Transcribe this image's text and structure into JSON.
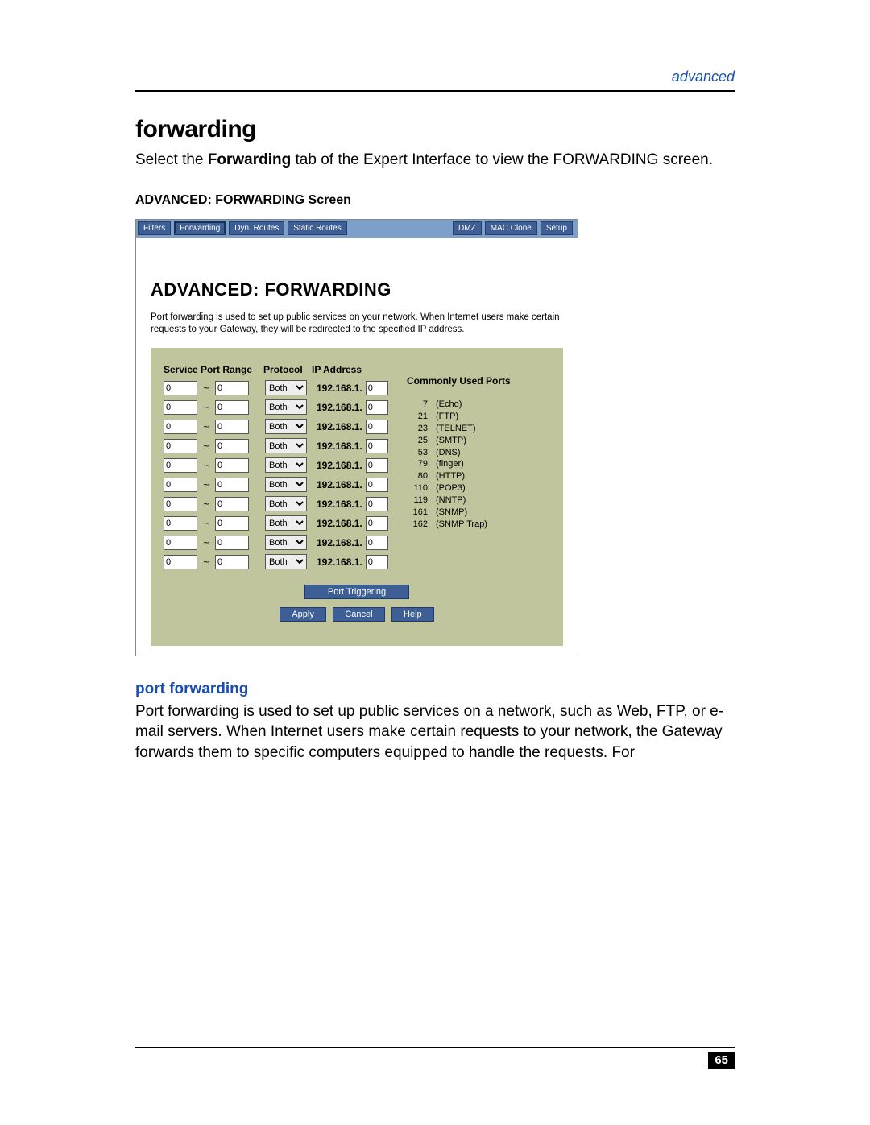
{
  "header": {
    "section": "advanced"
  },
  "title": "forwarding",
  "intro_pre": "Select the ",
  "intro_bold": "Forwarding",
  "intro_post": " tab of the Expert Interface to view the FORWARDING screen.",
  "caption": "ADVANCED: FORWARDING Screen",
  "screenshot": {
    "tabs": [
      "Filters",
      "Forwarding",
      "Dyn. Routes",
      "Static Routes",
      "DMZ",
      "MAC Clone",
      "Setup"
    ],
    "active_tab": 1,
    "title": "ADVANCED: FORWARDING",
    "desc": "Port forwarding is used to set up public services on your network. When Internet users make certain requests to your Gateway, they will be redirected to the specified IP address.",
    "headers": {
      "spr": "Service Port Range",
      "proto": "Protocol",
      "ip": "IP Address"
    },
    "ip_prefix": "192.168.1.",
    "rows": [
      {
        "from": "0",
        "to": "0",
        "proto": "Both",
        "ip": "0"
      },
      {
        "from": "0",
        "to": "0",
        "proto": "Both",
        "ip": "0"
      },
      {
        "from": "0",
        "to": "0",
        "proto": "Both",
        "ip": "0"
      },
      {
        "from": "0",
        "to": "0",
        "proto": "Both",
        "ip": "0"
      },
      {
        "from": "0",
        "to": "0",
        "proto": "Both",
        "ip": "0"
      },
      {
        "from": "0",
        "to": "0",
        "proto": "Both",
        "ip": "0"
      },
      {
        "from": "0",
        "to": "0",
        "proto": "Both",
        "ip": "0"
      },
      {
        "from": "0",
        "to": "0",
        "proto": "Both",
        "ip": "0"
      },
      {
        "from": "0",
        "to": "0",
        "proto": "Both",
        "ip": "0"
      },
      {
        "from": "0",
        "to": "0",
        "proto": "Both",
        "ip": "0"
      }
    ],
    "common_title": "Commonly Used Ports",
    "common_ports": [
      {
        "n": "7",
        "name": "(Echo)"
      },
      {
        "n": "21",
        "name": "(FTP)"
      },
      {
        "n": "23",
        "name": "(TELNET)"
      },
      {
        "n": "25",
        "name": "(SMTP)"
      },
      {
        "n": "53",
        "name": "(DNS)"
      },
      {
        "n": "79",
        "name": "(finger)"
      },
      {
        "n": "80",
        "name": "(HTTP)"
      },
      {
        "n": "110",
        "name": "(POP3)"
      },
      {
        "n": "119",
        "name": "(NNTP)"
      },
      {
        "n": "161",
        "name": "(SNMP)"
      },
      {
        "n": "162",
        "name": "(SNMP Trap)"
      }
    ],
    "buttons": {
      "trigger": "Port Triggering",
      "apply": "Apply",
      "cancel": "Cancel",
      "help": "Help"
    }
  },
  "sub_title": "port forwarding",
  "sub_body": "Port forwarding is used to set up public services on a network, such as Web, FTP, or e-mail servers. When Internet users make certain requests to your network, the Gateway forwards them to specific computers equipped to handle the requests. For",
  "page_number": "65"
}
